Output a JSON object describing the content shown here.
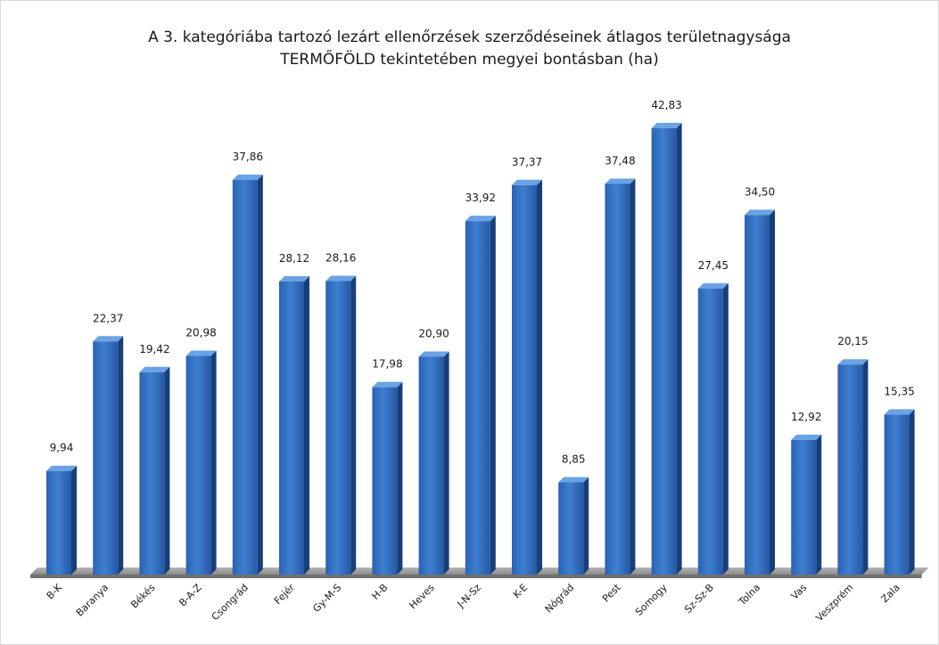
{
  "chart_data": {
    "type": "bar",
    "title": "A 3. kategóriába tartozó lezárt ellenőrzések szerződéseinek átlagos területnagysága",
    "subtitle": "TERMŐFÖLD tekintetében megyei bontásban (ha)",
    "categories": [
      "B-K",
      "Baranya",
      "Békés",
      "B-A-Z",
      "Csongrád",
      "Fejér",
      "Gy-M-S",
      "H-B",
      "Heves",
      "J-N-Sz",
      "K-E",
      "Nógrád",
      "Pest",
      "Somogy",
      "Sz-Sz-B",
      "Tolna",
      "Vas",
      "Veszprém",
      "Zala"
    ],
    "values": [
      9.94,
      22.37,
      19.42,
      20.98,
      37.86,
      28.12,
      28.16,
      17.98,
      20.9,
      33.92,
      37.37,
      8.85,
      37.48,
      42.83,
      27.45,
      34.5,
      12.92,
      20.15,
      15.35
    ],
    "value_labels": [
      "9,94",
      "22,37",
      "19,42",
      "20,98",
      "37,86",
      "28,12",
      "28,16",
      "17,98",
      "20,90",
      "33,92",
      "37,37",
      "8,85",
      "37,48",
      "42,83",
      "27,45",
      "34,50",
      "12,92",
      "20,15",
      "15,35"
    ],
    "xlabel": "",
    "ylabel": "",
    "ylim": [
      0,
      45
    ],
    "grid": false,
    "legend": "none",
    "style": "3d-column",
    "colors": {
      "bar_front_top": "#3f7fd0",
      "bar_front_bottom": "#1f4f95",
      "bar_side": "#173f78",
      "bar_top": "#6aa2e6",
      "floor": "#9a9a9a",
      "floor_dark": "#707070"
    }
  }
}
